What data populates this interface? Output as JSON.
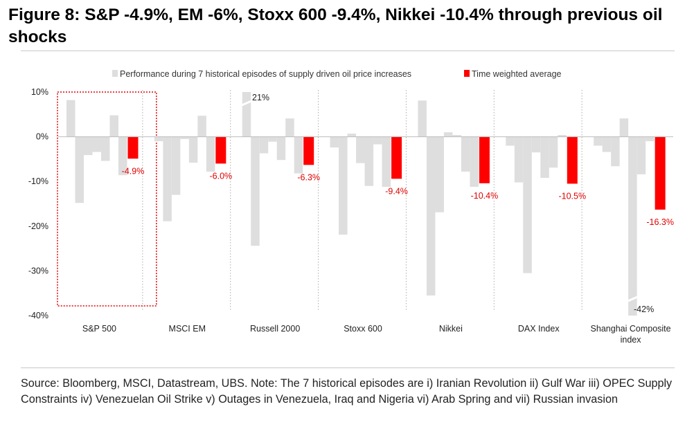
{
  "figure": {
    "title": "Figure 8: S&P -4.9%, EM -6%, Stoxx 600 -9.4%, Nikkei -10.4% through previous oil shocks",
    "source": "Source: Bloomberg, MSCI, Datastream, UBS. Note: The 7 historical episodes are i) Iranian Revolution ii) Gulf War iii) OPEC Supply Constraints iv) Venezuelan Oil Strike v) Outages in Venezuela, Iraq and Nigeria vi) Arab Spring and vii) Russian invasion"
  },
  "chart_data": {
    "type": "bar",
    "categories": [
      "S&P 500",
      "MSCI EM",
      "Russell 2000",
      "Stoxx 600",
      "Nikkei",
      "DAX Index",
      "Shanghai Composite index"
    ],
    "series": [
      {
        "name": "Performance during 7 historical episodes of supply driven oil price increases",
        "color": "#dedede",
        "values": [
          [
            8.2,
            -14.8,
            -4.1,
            -3.4,
            -5.4,
            4.8,
            -8.6
          ],
          [
            -1.0,
            -18.9,
            -13.0,
            -0.5,
            -5.8,
            4.7,
            -7.8
          ],
          [
            21,
            -24.4,
            -3.7,
            -1.1,
            -5.2,
            4.1,
            -8.2
          ],
          [
            -2.4,
            -21.9,
            0.7,
            -5.9,
            -11.0,
            -1.7,
            -11.2
          ],
          [
            8.1,
            -35.5,
            -16.9,
            1.0,
            0.4,
            -7.8,
            -11.2
          ],
          [
            -2.0,
            -10.2,
            -30.5,
            -3.5,
            -9.2,
            -6.9,
            0.4
          ],
          [
            -2.0,
            -3.4,
            -6.6,
            4.1,
            -42,
            -8.4,
            -1.0
          ]
        ]
      },
      {
        "name": "Time weighted average",
        "color": "#ff0000",
        "values": [
          -4.9,
          -6.0,
          -6.3,
          -9.4,
          -10.4,
          -10.5,
          -16.3
        ]
      }
    ],
    "average_labels": [
      "-4.9%",
      "-6.0%",
      "-6.3%",
      "-9.4%",
      "-10.4%",
      "-10.5%",
      "-16.3%"
    ],
    "truncated_bar_labels": [
      "21%",
      "-42%"
    ],
    "ylim": [
      -40,
      10
    ],
    "yticks": [
      10,
      0,
      -10,
      -20,
      -30,
      -40
    ],
    "ytick_labels": [
      "10%",
      "0%",
      "-10%",
      "-20%",
      "-30%",
      "-40%"
    ],
    "highlight_group": "S&P 500",
    "legend_position": "top",
    "xlabel": "",
    "ylabel": ""
  }
}
